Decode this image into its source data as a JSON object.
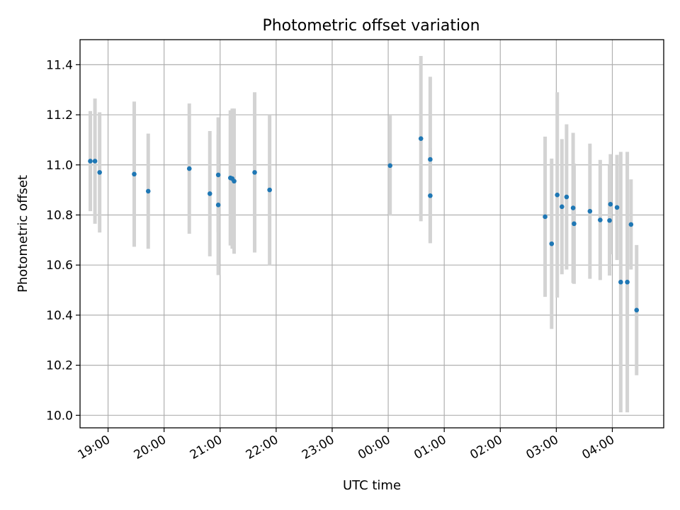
{
  "chart_data": {
    "type": "scatter",
    "title": "Photometric offset variation",
    "xlabel": "UTC time",
    "ylabel": "Photometric offset",
    "xlim": [
      "18:30",
      "04:55"
    ],
    "ylim": [
      9.95,
      11.5
    ],
    "x_ticks": [
      "19:00",
      "20:00",
      "21:00",
      "22:00",
      "23:00",
      "00:00",
      "01:00",
      "02:00",
      "03:00",
      "04:00"
    ],
    "y_ticks": [
      "10.0",
      "10.2",
      "10.4",
      "10.6",
      "10.8",
      "11.0",
      "11.2",
      "11.4"
    ],
    "grid": true,
    "colors": {
      "point": "#1f77b4",
      "errorbar": "#d3d3d3"
    },
    "series": [
      {
        "points": [
          {
            "time": "18:41",
            "y": 11.015,
            "err": 0.2
          },
          {
            "time": "18:46",
            "y": 11.015,
            "err": 0.25
          },
          {
            "time": "18:51",
            "y": 10.97,
            "err": 0.24
          },
          {
            "time": "19:28",
            "y": 10.963,
            "err": 0.29
          },
          {
            "time": "19:43",
            "y": 10.895,
            "err": 0.23
          },
          {
            "time": "20:27",
            "y": 10.985,
            "err": 0.26
          },
          {
            "time": "20:49",
            "y": 10.885,
            "err": 0.25
          },
          {
            "time": "20:58",
            "y": 10.96,
            "err": 0.23
          },
          {
            "time": "20:58",
            "y": 10.84,
            "err": 0.28
          },
          {
            "time": "21:11",
            "y": 10.948,
            "err": 0.27
          },
          {
            "time": "21:13",
            "y": 10.945,
            "err": 0.28
          },
          {
            "time": "21:15",
            "y": 10.935,
            "err": 0.29
          },
          {
            "time": "21:37",
            "y": 10.97,
            "err": 0.32
          },
          {
            "time": "21:53",
            "y": 10.9,
            "err": 0.3
          },
          {
            "time": "00:02",
            "y": 10.997,
            "err": 0.2
          },
          {
            "time": "00:35",
            "y": 11.105,
            "err": 0.33
          },
          {
            "time": "00:45",
            "y": 11.022,
            "err": 0.33
          },
          {
            "time": "00:45",
            "y": 10.877,
            "err": 0.19
          },
          {
            "time": "02:48",
            "y": 10.793,
            "err": 0.32
          },
          {
            "time": "02:55",
            "y": 10.685,
            "err": 0.34
          },
          {
            "time": "03:01",
            "y": 10.88,
            "err": 0.41
          },
          {
            "time": "03:06",
            "y": 10.833,
            "err": 0.27
          },
          {
            "time": "03:11",
            "y": 10.872,
            "err": 0.29
          },
          {
            "time": "03:18",
            "y": 10.828,
            "err": 0.3
          },
          {
            "time": "03:19",
            "y": 10.765,
            "err": 0.24
          },
          {
            "time": "03:36",
            "y": 10.815,
            "err": 0.27
          },
          {
            "time": "03:47",
            "y": 10.78,
            "err": 0.24
          },
          {
            "time": "03:57",
            "y": 10.778,
            "err": 0.22
          },
          {
            "time": "03:58",
            "y": 10.843,
            "err": 0.2
          },
          {
            "time": "04:05",
            "y": 10.83,
            "err": 0.21
          },
          {
            "time": "04:09",
            "y": 10.532,
            "err": 0.52
          },
          {
            "time": "04:16",
            "y": 10.532,
            "err": 0.52
          },
          {
            "time": "04:20",
            "y": 10.762,
            "err": 0.18
          },
          {
            "time": "04:26",
            "y": 10.42,
            "err": 0.26
          }
        ]
      }
    ]
  }
}
